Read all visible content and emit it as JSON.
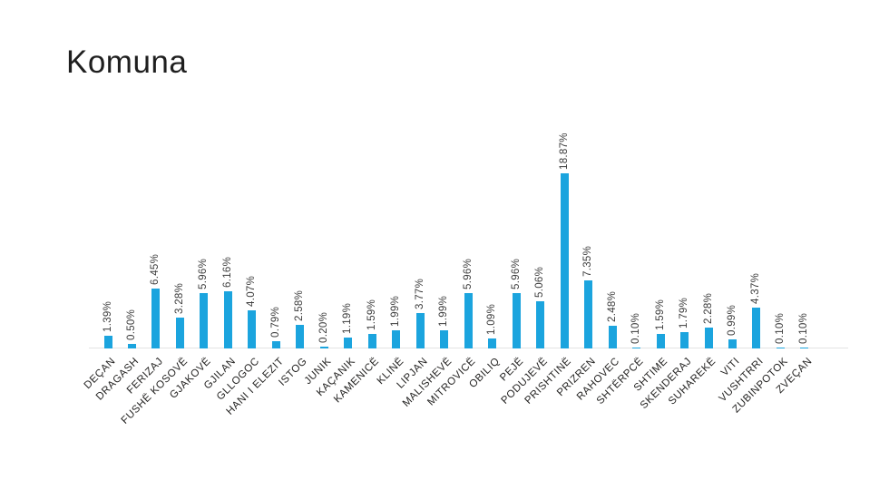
{
  "chart_data": {
    "type": "bar",
    "title": "Komuna",
    "categories": [
      "DEÇAN",
      "DRAGASH",
      "FERIZAJ",
      "FUSHË KOSOVË",
      "GJAKOVË",
      "GJILAN",
      "GLLOGOC",
      "HANI I ELEZIT",
      "ISTOG",
      "JUNIK",
      "KAÇANIK",
      "KAMENICË",
      "KLINË",
      "LIPJAN",
      "MALISHEVË",
      "MITROVICË",
      "OBILIQ",
      "PEJË",
      "PODUJEVË",
      "PRISHTINË",
      "PRIZREN",
      "RAHOVEC",
      "SHTËRPCË",
      "SHTIME",
      "SKENDERAJ",
      "SUHAREKË",
      "VITI",
      "VUSHTRRI",
      "ZUBINPOTOK",
      "ZVEÇAN"
    ],
    "values": [
      1.39,
      0.5,
      6.45,
      3.28,
      5.96,
      6.16,
      4.07,
      0.79,
      2.58,
      0.2,
      1.19,
      1.59,
      1.99,
      3.77,
      1.99,
      5.96,
      1.09,
      5.96,
      5.06,
      18.87,
      7.35,
      2.48,
      0.1,
      1.59,
      1.79,
      2.28,
      0.99,
      4.37,
      0.1,
      0.1
    ],
    "labels": [
      "1.39%",
      "0.50%",
      "6.45%",
      "3.28%",
      "5.96%",
      "6.16%",
      "4.07%",
      "0.79%",
      "2.58%",
      "0.20%",
      "1.19%",
      "1.59%",
      "1.99%",
      "3.77%",
      "1.99%",
      "5.96%",
      "1.09%",
      "5.96%",
      "5.06%",
      "18.87%",
      "7.35%",
      "2.48%",
      "0.10%",
      "1.59%",
      "1.79%",
      "2.28%",
      "0.99%",
      "4.37%",
      "0.10%",
      "0.10%"
    ],
    "xlabel": "",
    "ylabel": "",
    "ylim": [
      0,
      20
    ],
    "grid": false,
    "legend": "none",
    "value_label_rotation": -90,
    "category_label_rotation": -45,
    "colors": {
      "bar": "#1BA4DE",
      "value_label": "#3D3D3D",
      "category_label": "#252423",
      "axis_line": "#E3E3E3",
      "title": "#1F1F1F",
      "background": "#FFFFFF"
    }
  }
}
